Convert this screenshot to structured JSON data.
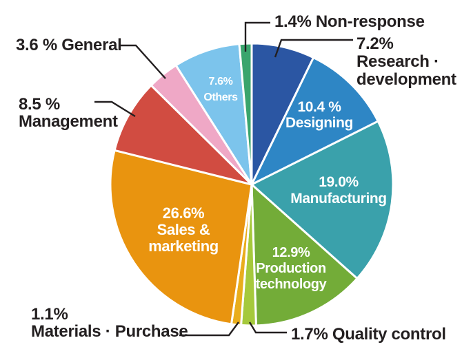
{
  "chart_data": {
    "type": "pie",
    "unit": "%",
    "start_angle_deg": 0,
    "clockwise": true,
    "legend": "none - direct segment labels with leader lines",
    "segments": [
      {
        "name": "research-development",
        "label": "Research·development",
        "value": 7.2,
        "color": "#2b56a3",
        "placement": "outside",
        "lines": [
          "7.2%",
          "Research ·",
          "development"
        ]
      },
      {
        "name": "designing",
        "label": "Designing",
        "value": 10.4,
        "color": "#2e86c5",
        "placement": "inside",
        "lines": [
          "10.4 %",
          "Designing"
        ]
      },
      {
        "name": "manufacturing",
        "label": "Manufacturing",
        "value": 19.0,
        "color": "#3aa1ab",
        "placement": "inside",
        "lines": [
          "19.0%",
          "Manufacturing"
        ]
      },
      {
        "name": "production-technology",
        "label": "Production technology",
        "value": 12.9,
        "color": "#73ac38",
        "placement": "inside",
        "lines": [
          "12.9%",
          "Production",
          "technology"
        ]
      },
      {
        "name": "quality-control",
        "label": "Quality control",
        "value": 1.7,
        "color": "#a5c93c",
        "placement": "outside",
        "lines": [
          "1.7% Quality control"
        ]
      },
      {
        "name": "materials-purchase",
        "label": "Materials·Purchase",
        "value": 1.1,
        "color": "#e9ad1c",
        "placement": "outside",
        "lines": [
          "1.1%",
          "Materials · Purchase"
        ]
      },
      {
        "name": "sales-marketing",
        "label": "Sales & marketing",
        "value": 26.6,
        "color": "#e9940f",
        "placement": "inside",
        "lines": [
          "26.6%",
          "Sales &",
          "marketing"
        ]
      },
      {
        "name": "management",
        "label": "Management",
        "value": 8.5,
        "color": "#d14c41",
        "placement": "outside",
        "lines": [
          "8.5 %",
          "Management"
        ]
      },
      {
        "name": "general",
        "label": "General",
        "value": 3.6,
        "color": "#efa8c6",
        "placement": "outside",
        "lines": [
          "3.6 % General"
        ]
      },
      {
        "name": "others",
        "label": "Others",
        "value": 7.6,
        "color": "#7cc4ec",
        "placement": "inside",
        "lines": [
          "7.6%",
          "Others"
        ]
      },
      {
        "name": "non-response",
        "label": "Non-response",
        "value": 1.4,
        "color": "#3aa56d",
        "placement": "outside",
        "lines": [
          "1.4% Non-response"
        ]
      }
    ]
  },
  "colors": {
    "background": "#ffffff",
    "text": "#231f20",
    "leader_line": "#231f20",
    "slice_divider": "#ffffff",
    "inside_label_text": "#ffffff"
  }
}
